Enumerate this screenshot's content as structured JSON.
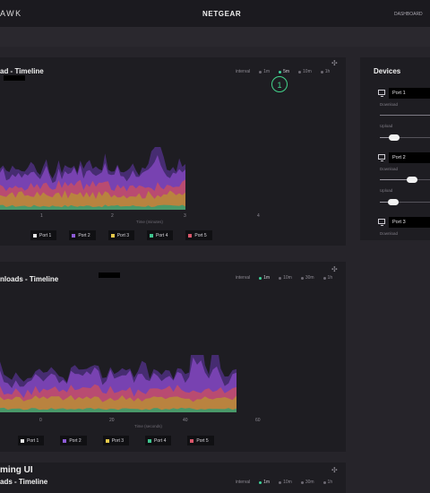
{
  "app": {
    "brand_partial": "AWK",
    "brand_center": "NETGEAR",
    "dashboard_link": "DASHBOARD"
  },
  "panel1": {
    "title": "ad - Timeline",
    "range_options": [
      "interval",
      "1m",
      "5m",
      "10m",
      "1h"
    ],
    "selected_range": "5m",
    "x_ticks": [
      "1",
      "2",
      "3",
      "4"
    ],
    "x_axis_label": "Time (minutes)",
    "callout": "1"
  },
  "panel2": {
    "title": "nloads - Timeline",
    "range_options": [
      "interval",
      "1m",
      "10m",
      "30m",
      "1h"
    ],
    "selected_range": "1m",
    "x_ticks": [
      "0",
      "20",
      "40",
      "60"
    ],
    "x_axis_label": "Time (seconds)"
  },
  "panel3": {
    "title_line1": "ming UI",
    "title_line2": "ads - Timeline",
    "range_options": [
      "interval",
      "1m",
      "10m",
      "30m",
      "1h"
    ],
    "selected_range": "1m"
  },
  "legend": [
    {
      "label": "Port 1",
      "color": "#e8e8e8"
    },
    {
      "label": "Port 2",
      "color": "#8d5bd6"
    },
    {
      "label": "Port 3",
      "color": "#e6c84a"
    },
    {
      "label": "Port 4",
      "color": "#3fc48e"
    },
    {
      "label": "Port 5",
      "color": "#d9566a"
    }
  ],
  "devices": {
    "title": "Devices",
    "ports": [
      {
        "name": "Port 1",
        "download_label": "Download",
        "upload_label": "Upload",
        "upload_level": 0.3
      },
      {
        "name": "Port 2",
        "download_label": "Download",
        "upload_label": "Upload",
        "download_level": 0.65,
        "upload_level": 0.25
      },
      {
        "name": "Port 3",
        "download_label": "Download"
      }
    ]
  },
  "colors": {
    "background": "#26242a",
    "panel": "#1e1d22",
    "accent": "#3ed49a"
  }
}
